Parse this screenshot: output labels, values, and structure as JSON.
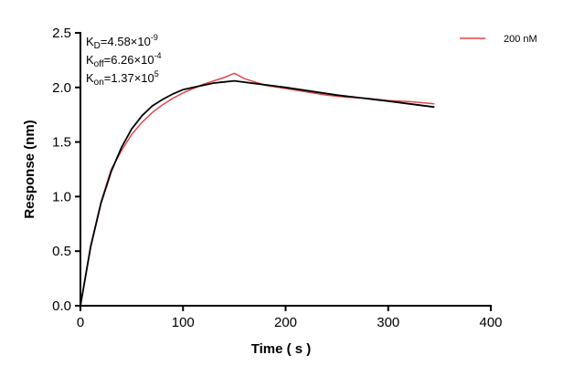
{
  "chart_data": {
    "type": "line",
    "xlabel": "Time ( s )",
    "ylabel": "Response (nm)",
    "xlim": [
      0,
      400
    ],
    "ylim": [
      0,
      2.5
    ],
    "xticks": [
      0,
      100,
      200,
      300,
      400
    ],
    "yticks": [
      "0.0",
      "0.5",
      "1.0",
      "1.5",
      "2.0",
      "2.5"
    ],
    "grid": false,
    "legend_position": "top-right",
    "annotations": [
      {
        "base": "K",
        "sub": "D",
        "value": "=4.58×10",
        "exp": "-9"
      },
      {
        "base": "K",
        "sub": "off",
        "value": "=6.26×10",
        "exp": "-4"
      },
      {
        "base": "K",
        "sub": "on",
        "value": "=1.37×10",
        "exp": "5"
      }
    ],
    "series": [
      {
        "name": "200 nM",
        "color": "#e0474c",
        "x": [
          0,
          10,
          20,
          30,
          40,
          50,
          60,
          70,
          80,
          90,
          100,
          110,
          120,
          130,
          140,
          150,
          160,
          170,
          180,
          200,
          220,
          240,
          260,
          280,
          300,
          320,
          345
        ],
        "y": [
          0,
          0.55,
          0.95,
          1.25,
          1.42,
          1.57,
          1.68,
          1.77,
          1.84,
          1.9,
          1.95,
          1.99,
          2.03,
          2.06,
          2.09,
          2.13,
          2.08,
          2.05,
          2.02,
          1.99,
          1.96,
          1.93,
          1.91,
          1.9,
          1.88,
          1.87,
          1.85
        ]
      },
      {
        "color": "#000000",
        "x": [
          0,
          10,
          20,
          30,
          40,
          50,
          60,
          70,
          80,
          90,
          100,
          110,
          120,
          130,
          140,
          150,
          200,
          250,
          300,
          345
        ],
        "y": [
          0,
          0.54,
          0.94,
          1.23,
          1.45,
          1.62,
          1.74,
          1.83,
          1.89,
          1.94,
          1.98,
          2.0,
          2.02,
          2.04,
          2.05,
          2.06,
          2.0,
          1.93,
          1.875,
          1.82
        ]
      }
    ]
  }
}
